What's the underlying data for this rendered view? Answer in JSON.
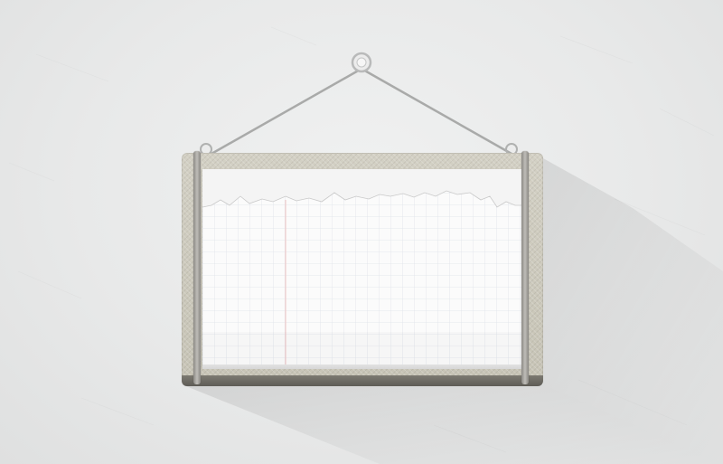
{
  "scene": {
    "description_free": true
  },
  "colors": {
    "background": "#e9eaea",
    "frame": "#c9c6b9",
    "frame_base": "#6b6963",
    "strap": "#a9a7a2",
    "string": "#b5b6b5",
    "paper": "#f6f6f6",
    "grid_line": "#dfe3ea",
    "margin_line": "#f3c9c9"
  },
  "icons": {
    "hanging_nail": "nail-ring-icon"
  }
}
